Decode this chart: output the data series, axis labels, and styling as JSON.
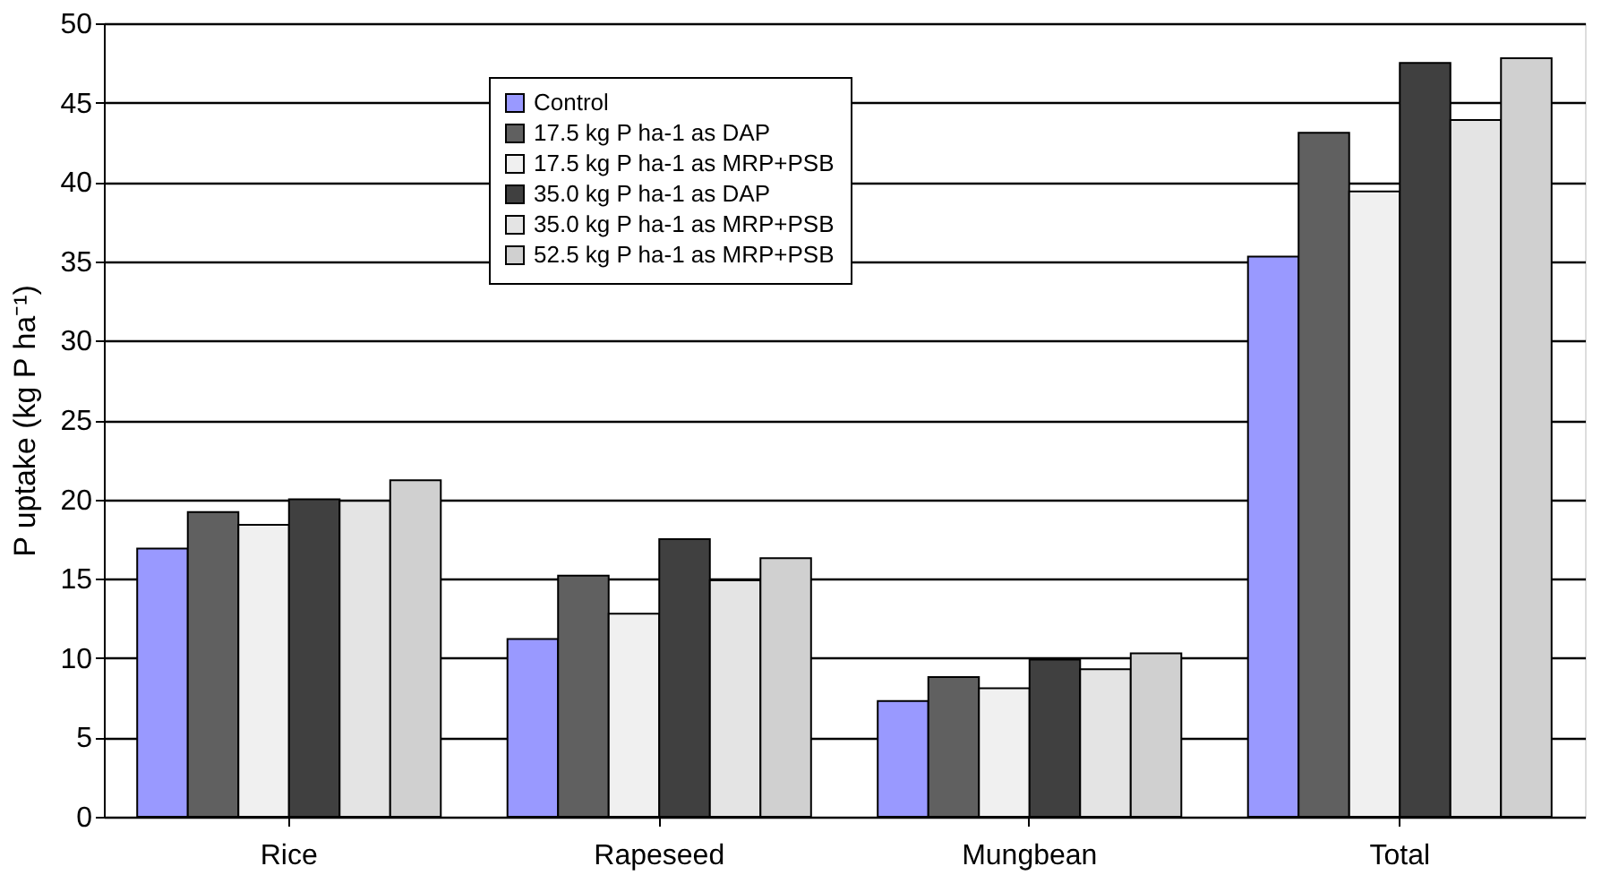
{
  "chart_data": {
    "type": "bar",
    "ylabel": "P uptake (kg P ha⁻¹)",
    "categories": [
      "Rice",
      "Rapeseed",
      "Mungbean",
      "Total"
    ],
    "series": [
      {
        "name": "Control",
        "color": "#9999ff",
        "values": [
          16.9,
          11.2,
          7.3,
          35.3
        ]
      },
      {
        "name": "17.5 kg P ha-1 as DAP",
        "color": "#606060",
        "values": [
          19.2,
          15.2,
          8.8,
          43.1
        ]
      },
      {
        "name": "17.5 kg P ha-1 as MRP+PSB",
        "color": "#f0f0f0",
        "values": [
          18.4,
          12.8,
          8.1,
          39.4
        ]
      },
      {
        "name": "35.0 kg P ha-1 as DAP",
        "color": "#404040",
        "values": [
          20.0,
          17.5,
          9.9,
          47.5
        ]
      },
      {
        "name": "35.0 kg P ha-1 as MRP+PSB",
        "color": "#e4e4e4",
        "values": [
          19.9,
          14.9,
          9.3,
          43.9
        ]
      },
      {
        "name": "52.5 kg P ha-1 as MRP+PSB",
        "color": "#d0d0d0",
        "values": [
          21.2,
          16.3,
          10.3,
          47.8
        ]
      }
    ],
    "ylim": [
      0,
      50
    ],
    "yticks": [
      0,
      5,
      10,
      15,
      20,
      25,
      30,
      35,
      40,
      45,
      50
    ],
    "grid": "y",
    "legend": "top"
  }
}
